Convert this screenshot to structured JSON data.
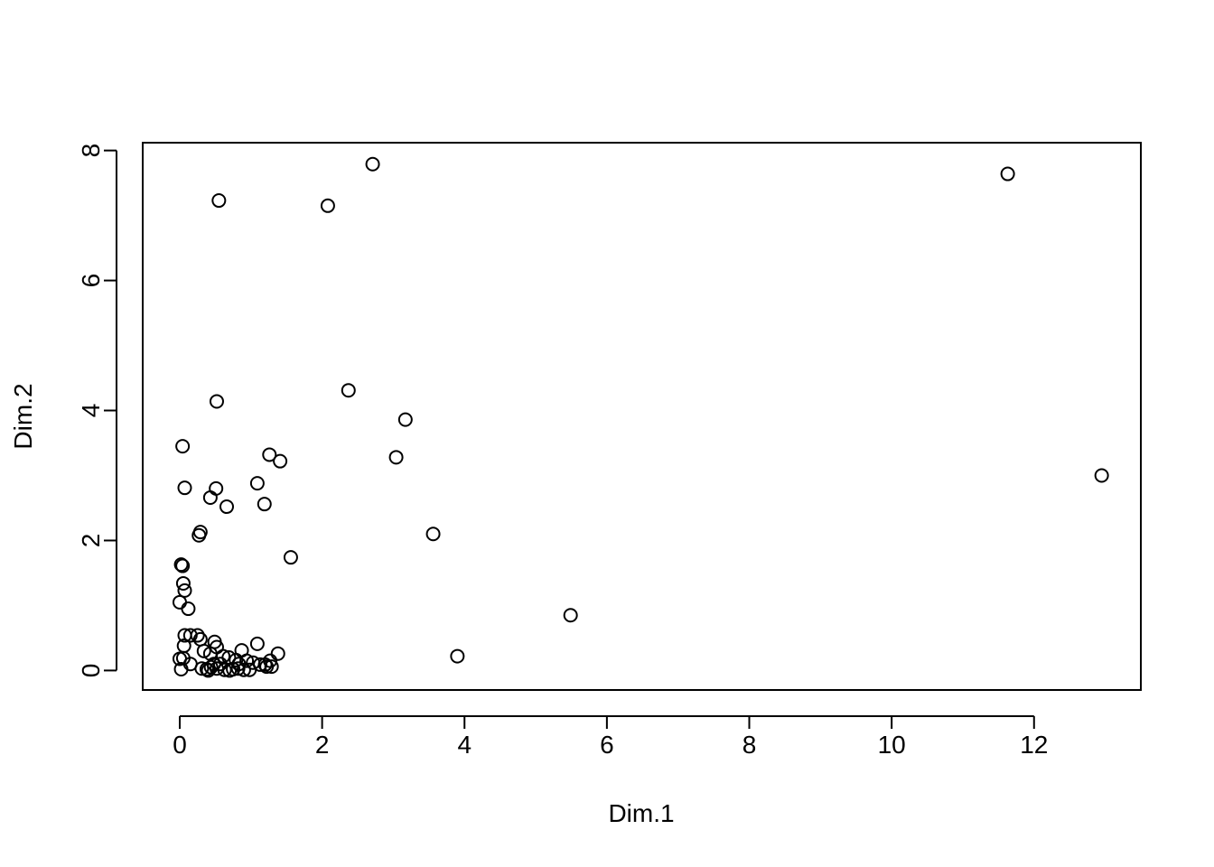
{
  "chart_data": {
    "type": "scatter",
    "title": "",
    "xlabel": "Dim.1",
    "ylabel": "Dim.2",
    "xlim": [
      -0.52,
      13.5
    ],
    "ylim": [
      -0.3,
      8.12
    ],
    "xticks": [
      0,
      2,
      4,
      6,
      8,
      10,
      12
    ],
    "yticks": [
      0,
      2,
      4,
      6,
      8
    ],
    "grid": false,
    "legend": "none",
    "marker": "open-circle",
    "points": [
      [
        0.55,
        7.23
      ],
      [
        2.08,
        7.15
      ],
      [
        2.71,
        7.79
      ],
      [
        11.63,
        7.64
      ],
      [
        12.95,
        3.0
      ],
      [
        0.52,
        4.14
      ],
      [
        2.37,
        4.31
      ],
      [
        3.17,
        3.86
      ],
      [
        3.04,
        3.28
      ],
      [
        0.04,
        3.45
      ],
      [
        1.26,
        3.32
      ],
      [
        1.41,
        3.22
      ],
      [
        0.07,
        2.81
      ],
      [
        0.51,
        2.8
      ],
      [
        0.43,
        2.66
      ],
      [
        1.09,
        2.88
      ],
      [
        0.66,
        2.52
      ],
      [
        1.19,
        2.56
      ],
      [
        0.29,
        2.13
      ],
      [
        0.27,
        2.08
      ],
      [
        3.56,
        2.1
      ],
      [
        1.56,
        1.74
      ],
      [
        0.02,
        1.63
      ],
      [
        0.04,
        1.61
      ],
      [
        0.05,
        1.34
      ],
      [
        0.07,
        1.23
      ],
      [
        0.0,
        1.05
      ],
      [
        0.12,
        0.95
      ],
      [
        5.49,
        0.85
      ],
      [
        3.9,
        0.22
      ],
      [
        0.07,
        0.54
      ],
      [
        0.15,
        0.54
      ],
      [
        0.25,
        0.54
      ],
      [
        0.29,
        0.48
      ],
      [
        0.49,
        0.44
      ],
      [
        0.06,
        0.38
      ],
      [
        0.52,
        0.36
      ],
      [
        0.34,
        0.3
      ],
      [
        0.43,
        0.26
      ],
      [
        1.09,
        0.41
      ],
      [
        0.87,
        0.31
      ],
      [
        1.38,
        0.26
      ],
      [
        0.61,
        0.22
      ],
      [
        0.69,
        0.2
      ],
      [
        0.0,
        0.18
      ],
      [
        0.05,
        0.19
      ],
      [
        0.79,
        0.16
      ],
      [
        0.94,
        0.15
      ],
      [
        1.27,
        0.15
      ],
      [
        0.15,
        0.1
      ],
      [
        0.48,
        0.1
      ],
      [
        0.57,
        0.1
      ],
      [
        0.83,
        0.1
      ],
      [
        1.03,
        0.12
      ],
      [
        1.13,
        0.09
      ],
      [
        1.2,
        0.09
      ],
      [
        0.02,
        0.02
      ],
      [
        0.31,
        0.03
      ],
      [
        0.38,
        0.02
      ],
      [
        0.44,
        0.05
      ],
      [
        0.52,
        0.03
      ],
      [
        0.63,
        0.01
      ],
      [
        0.7,
        0.0
      ],
      [
        0.75,
        0.02
      ],
      [
        0.82,
        0.03
      ],
      [
        0.9,
        0.01
      ],
      [
        0.98,
        0.01
      ],
      [
        1.22,
        0.06
      ],
      [
        1.29,
        0.06
      ],
      [
        0.4,
        0.0
      ]
    ]
  }
}
